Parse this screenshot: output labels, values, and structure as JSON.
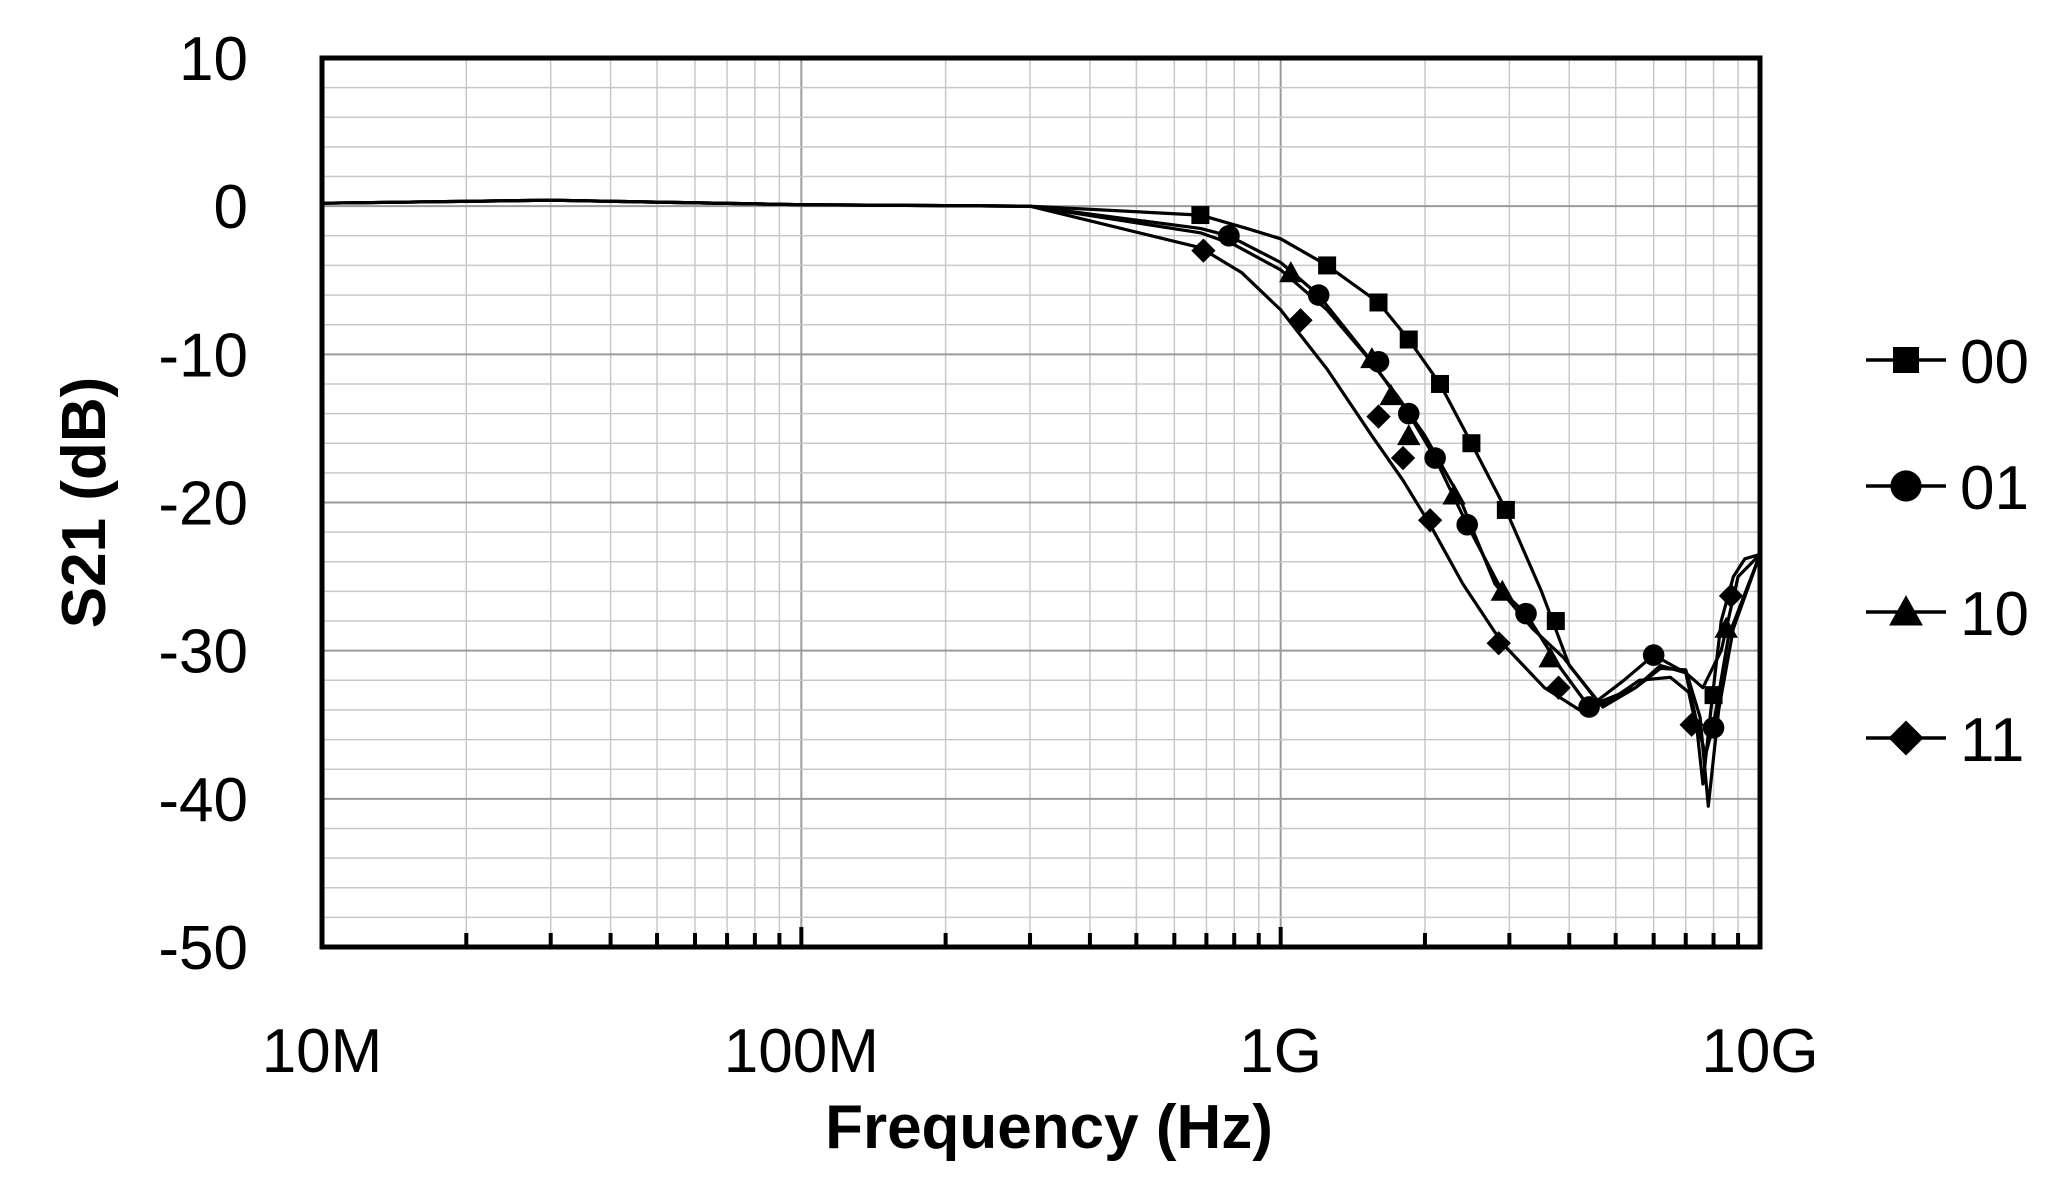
{
  "chart_data": {
    "type": "line",
    "title": "",
    "xlabel": "Frequency (Hz)",
    "ylabel": "S21 (dB)",
    "x_scale": "log",
    "xlim": [
      10000000,
      10000000000
    ],
    "ylim": [
      -50,
      10
    ],
    "x_ticks": [
      {
        "value": 10000000,
        "label": "10M"
      },
      {
        "value": 100000000,
        "label": "100M"
      },
      {
        "value": 1000000000,
        "label": "1G"
      },
      {
        "value": 10000000000,
        "label": "10G"
      }
    ],
    "y_ticks": [
      {
        "value": 10,
        "label": "10"
      },
      {
        "value": 0,
        "label": "0"
      },
      {
        "value": -10,
        "label": "-10"
      },
      {
        "value": -20,
        "label": "-20"
      },
      {
        "value": -30,
        "label": "-30"
      },
      {
        "value": -40,
        "label": "-40"
      },
      {
        "value": -50,
        "label": "-50"
      }
    ],
    "grid": true,
    "legend_position": "right",
    "series": [
      {
        "name": "00",
        "marker": "square",
        "color": "#000000",
        "x": [
          10000000,
          30000000,
          100000000,
          300000000,
          680000000,
          850000000,
          1000000000,
          1250000000,
          1600000000,
          1850000000,
          2150000000,
          2500000000,
          2950000000,
          3500000000,
          4000000000,
          4700000000,
          5500000000,
          6200000000,
          7000000000,
          7600000000,
          8300000000,
          9000000000,
          10000000000
        ],
        "y": [
          0.2,
          0.4,
          0.1,
          0,
          -0.6,
          -1.5,
          -2.2,
          -4,
          -6.5,
          -9,
          -12,
          -16,
          -20.5,
          -26,
          -31,
          -33.8,
          -32.5,
          -31,
          -31.5,
          -32.5,
          -30,
          -25,
          -23.5
        ],
        "marker_x": [
          680000000,
          1250000000,
          1600000000,
          1850000000,
          2150000000,
          2500000000,
          2950000000,
          3750000000,
          8000000000
        ],
        "marker_y": [
          -0.6,
          -4,
          -6.5,
          -9,
          -12,
          -16,
          -20.5,
          -28,
          -33
        ]
      },
      {
        "name": "01",
        "marker": "circle",
        "color": "#000000",
        "x": [
          10000000,
          30000000,
          100000000,
          300000000,
          680000000,
          780000000,
          1000000000,
          1200000000,
          1550000000,
          1850000000,
          2100000000,
          2450000000,
          2900000000,
          3250000000,
          3800000000,
          4400000000,
          5200000000,
          6000000000,
          7000000000,
          7400000000,
          7700000000,
          8000000000,
          8600000000,
          10000000000
        ],
        "y": [
          0.2,
          0.4,
          0.1,
          0,
          -1.5,
          -2,
          -3.8,
          -6,
          -10.5,
          -14,
          -17,
          -21.5,
          -26,
          -27.5,
          -31,
          -33.8,
          -32,
          -30.3,
          -31.5,
          -35,
          -37,
          -35,
          -29,
          -23.5
        ],
        "marker_x": [
          780000000,
          1200000000,
          1600000000,
          1850000000,
          2100000000,
          2450000000,
          3250000000,
          4400000000,
          6000000000,
          8000000000
        ],
        "marker_y": [
          -2,
          -6,
          -10.5,
          -14,
          -17,
          -21.5,
          -27.5,
          -33.8,
          -30.3,
          -35.2
        ]
      },
      {
        "name": "10",
        "marker": "triangle",
        "color": "#000000",
        "x": [
          10000000,
          30000000,
          100000000,
          300000000,
          680000000,
          800000000,
          1000000000,
          1250000000,
          1500000000,
          1750000000,
          2000000000,
          2350000000,
          2800000000,
          3350000000,
          3900000000,
          4600000000,
          5500000000,
          6200000000,
          7000000000,
          7500000000,
          7800000000,
          8200000000,
          8800000000,
          10000000000
        ],
        "y": [
          0.2,
          0.4,
          0.1,
          0,
          -1.8,
          -2.6,
          -4.3,
          -7,
          -10,
          -12.8,
          -15.5,
          -19.5,
          -25.5,
          -28.5,
          -30.5,
          -33.5,
          -32.5,
          -31.2,
          -31.3,
          -34.5,
          -40.5,
          -34,
          -28.5,
          -23.5
        ],
        "marker_x": [
          1050000000,
          1550000000,
          1700000000,
          1850000000,
          2300000000,
          2900000000,
          3650000000,
          8500000000
        ],
        "marker_y": [
          -4.5,
          -10.3,
          -12.8,
          -15.5,
          -19.5,
          -26,
          -30.5,
          -28.5
        ]
      },
      {
        "name": "11",
        "marker": "diamond",
        "color": "#000000",
        "x": [
          10000000,
          30000000,
          100000000,
          300000000,
          680000000,
          830000000,
          1000000000,
          1250000000,
          1550000000,
          1800000000,
          2050000000,
          2400000000,
          2900000000,
          3550000000,
          4200000000,
          4800000000,
          5600000000,
          6500000000,
          7100000000,
          7400000000,
          7600000000,
          7900000000,
          8300000000,
          8800000000,
          9300000000,
          10000000000
        ],
        "y": [
          0.2,
          0.4,
          0.1,
          0,
          -2.8,
          -4.5,
          -7,
          -11,
          -15.5,
          -18.5,
          -21.5,
          -25.5,
          -29.5,
          -32.5,
          -34,
          -33.5,
          -32,
          -31.8,
          -32.8,
          -35.5,
          -39,
          -34,
          -28,
          -25,
          -23.8,
          -23.5
        ],
        "marker_x": [
          690000000,
          1100000000,
          1600000000,
          1800000000,
          2050000000,
          2850000000,
          3800000000,
          7200000000,
          8700000000
        ],
        "marker_y": [
          -3,
          -7.7,
          -14.2,
          -17,
          -21.2,
          -29.5,
          -32.5,
          -35,
          -26.3
        ]
      }
    ]
  }
}
